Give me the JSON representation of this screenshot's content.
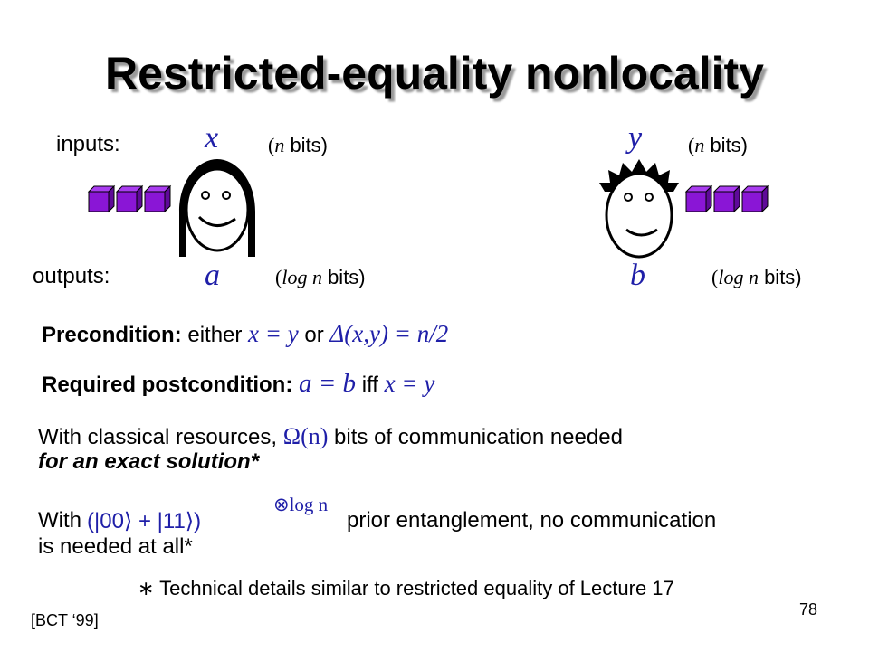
{
  "slide": {
    "title": "Restricted-equality nonlocality",
    "page_number": "78",
    "citation": "[BCT ‘99]"
  },
  "labels": {
    "inputs": "inputs:",
    "outputs": "outputs:"
  },
  "alice": {
    "input_var": "x",
    "output_var": "a",
    "input_bits": {
      "open": "(",
      "var": "n",
      "rest": " bits)"
    },
    "output_bits": {
      "open": "(",
      "var": "log n",
      "rest": " bits)"
    }
  },
  "bob": {
    "input_var": "y",
    "output_var": "b",
    "input_bits": {
      "open": "(",
      "var": "n",
      "rest": " bits)"
    },
    "output_bits": {
      "open": "(",
      "var": "log n",
      "rest": " bits)"
    }
  },
  "precondition": {
    "label": "Precondition:",
    "t1": " either ",
    "m1": "x = y",
    "t2": " or ",
    "m2": "Δ(x,y) = n/2"
  },
  "postcondition": {
    "label": "Required postcondition:",
    "m1": "a = b",
    "t1": " iff ",
    "m2": "x = y"
  },
  "classical": {
    "t1": "With classical resources, ",
    "m1": "Ω(n)",
    "t2": " bits of communication needed",
    "line2": "for an exact solution*"
  },
  "quantum": {
    "t1": "With ",
    "state": "(|00⟩ + |11⟩)",
    "exponent": "⊗log n",
    "t2": "prior entanglement, no communication",
    "line2": "is needed at all*"
  },
  "footnote": {
    "star": "∗",
    "text": " Technical details similar to restricted equality of Lecture 17"
  },
  "colors": {
    "math": "#1f1fa8",
    "cube_face": "#8a16d6",
    "cube_top": "#a93cf0",
    "cube_side": "#5f0a99"
  }
}
